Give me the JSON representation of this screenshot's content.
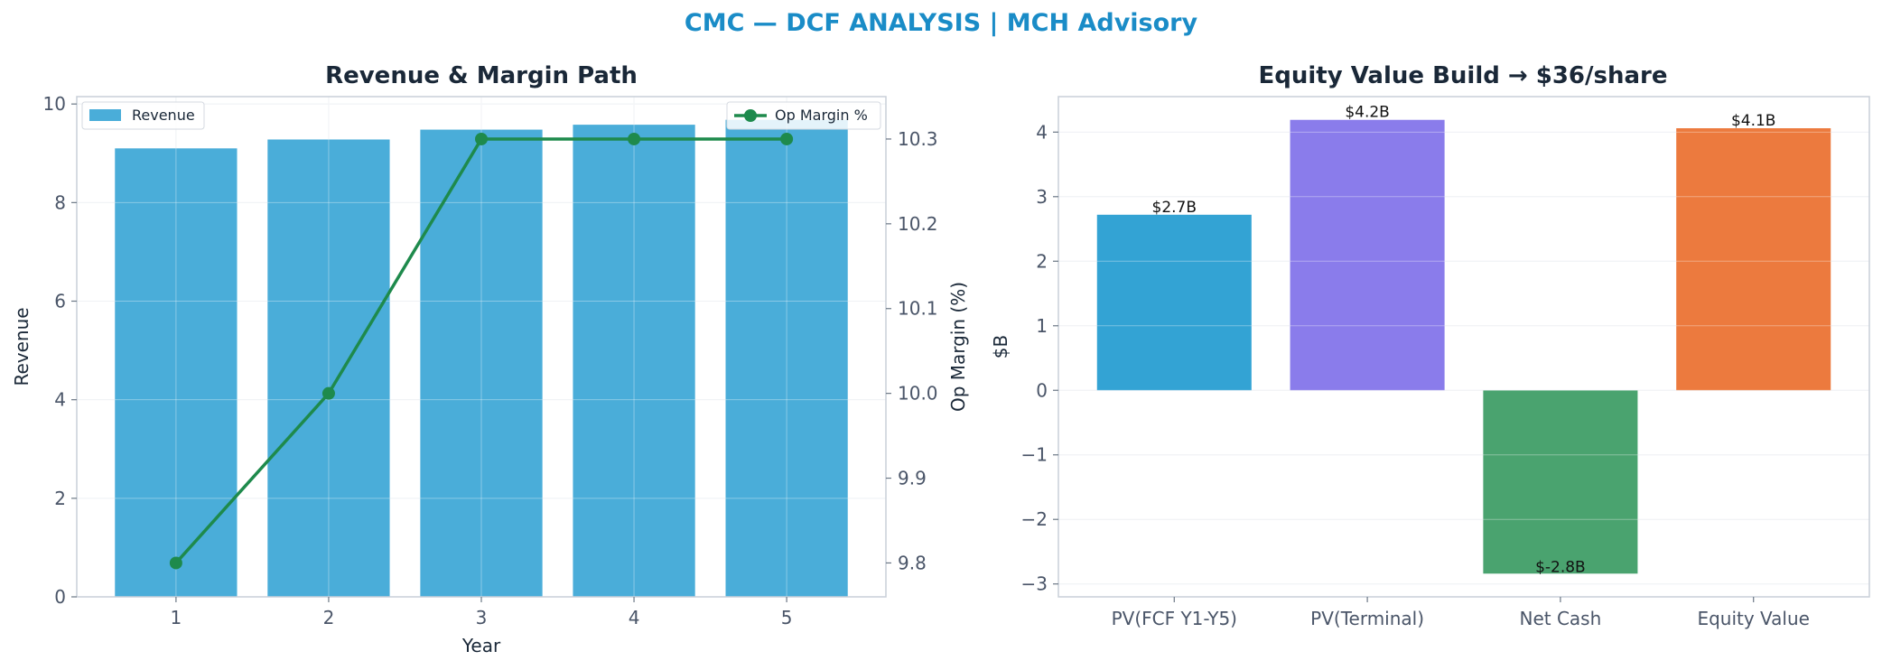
{
  "suptitle": "CMC — DCF ANALYSIS | MCH Advisory",
  "colors": {
    "revenue_bar": "#4aadd9",
    "margin_line": "#1e8a4c",
    "pv_fcf": "#33a3d4",
    "pv_terminal": "#8a7ceb",
    "net_cash": "#4aa36f",
    "equity_value": "#ec7a3e"
  },
  "chart_data": [
    {
      "type": "bar",
      "title": "Revenue & Margin Path",
      "xlabel": "Year",
      "ylabel": "Revenue",
      "y2label": "Op Margin (%)",
      "categories": [
        "1",
        "2",
        "3",
        "4",
        "5"
      ],
      "series": [
        {
          "name": "Revenue",
          "type": "bar",
          "axis": "left",
          "values": [
            9.1,
            9.28,
            9.48,
            9.58,
            9.68
          ]
        },
        {
          "name": "Op Margin %",
          "type": "line",
          "axis": "right",
          "values": [
            9.8,
            10.0,
            10.3,
            10.3,
            10.3
          ]
        }
      ],
      "ylim": [
        0,
        10.15
      ],
      "yticks": [
        "0",
        "2",
        "4",
        "6",
        "8",
        "10"
      ],
      "ytick_values": [
        0,
        2,
        4,
        6,
        8,
        10
      ],
      "y2lim": [
        9.76,
        10.35
      ],
      "y2ticks": [
        "9.8",
        "9.9",
        "10.0",
        "10.1",
        "10.2",
        "10.3"
      ],
      "y2tick_values": [
        9.8,
        9.9,
        10.0,
        10.1,
        10.2,
        10.3
      ],
      "grid": true,
      "legend": [
        "upper-left",
        "upper-right"
      ]
    },
    {
      "type": "bar",
      "title": "Equity Value Build → $36/share",
      "xlabel": "",
      "ylabel": "$B",
      "categories": [
        "PV(FCF Y1-Y5)",
        "PV(Terminal)",
        "Net Cash",
        "Equity Value"
      ],
      "values": [
        2.72,
        4.19,
        -2.84,
        4.06
      ],
      "data_labels": [
        "$2.7B",
        "$4.2B",
        "$-2.8B",
        "$4.1B"
      ],
      "ylim": [
        -3.2,
        4.55
      ],
      "yticks": [
        "−3",
        "−2",
        "−1",
        "0",
        "1",
        "2",
        "3",
        "4"
      ],
      "ytick_values": [
        -3,
        -2,
        -1,
        0,
        1,
        2,
        3,
        4
      ],
      "grid": true
    }
  ]
}
